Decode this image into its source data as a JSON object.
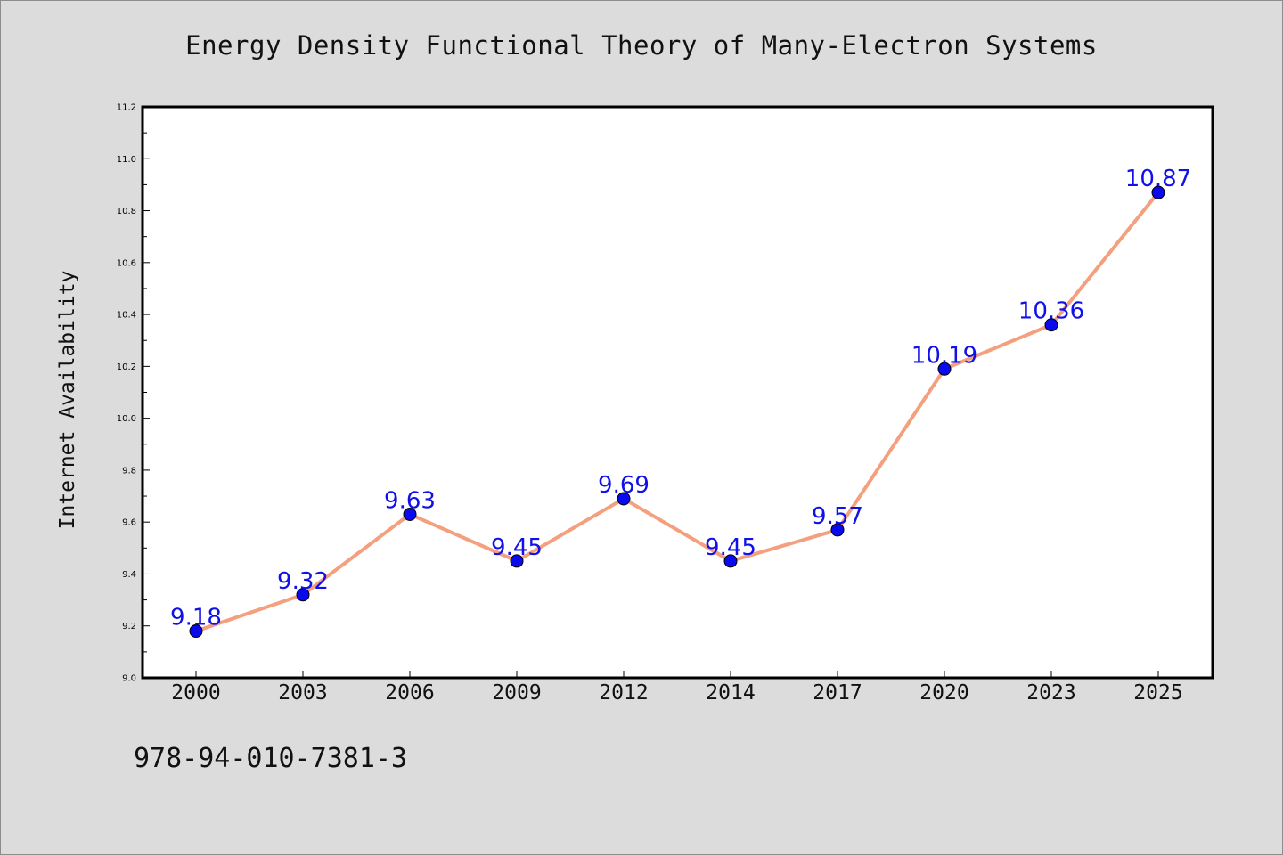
{
  "chart_data": {
    "type": "line",
    "title": "Energy Density Functional Theory of Many-Electron Systems",
    "ylabel": "Internet Availability",
    "xlabel": "",
    "categories": [
      "2000",
      "2003",
      "2006",
      "2009",
      "2012",
      "2014",
      "2017",
      "2020",
      "2023",
      "2025"
    ],
    "series": [
      {
        "values": [
          9.18,
          9.32,
          9.63,
          9.45,
          9.69,
          9.45,
          9.57,
          10.19,
          10.36,
          10.87
        ],
        "data_labels": [
          "9.18",
          "9.32",
          "9.63",
          "9.45",
          "9.69",
          "9.45",
          "9.57",
          "10.19",
          "10.36",
          "10.87"
        ],
        "line_color": "#f4a07e",
        "marker_color": "#0a0aee",
        "label_color": "#1010e8"
      }
    ],
    "ylim": [
      9.0,
      11.2
    ],
    "yticks": [
      "9.0",
      "9.2",
      "9.4",
      "9.6",
      "9.8",
      "10.0",
      "10.2",
      "10.4",
      "10.6",
      "10.8",
      "11.0",
      "11.2"
    ],
    "grid": false,
    "legend": "none"
  },
  "footer": {
    "code": "978-94-010-7381-3"
  },
  "colors": {
    "background": "#dcdcdc",
    "plot_background": "#ffffff",
    "axis": "#000000"
  }
}
